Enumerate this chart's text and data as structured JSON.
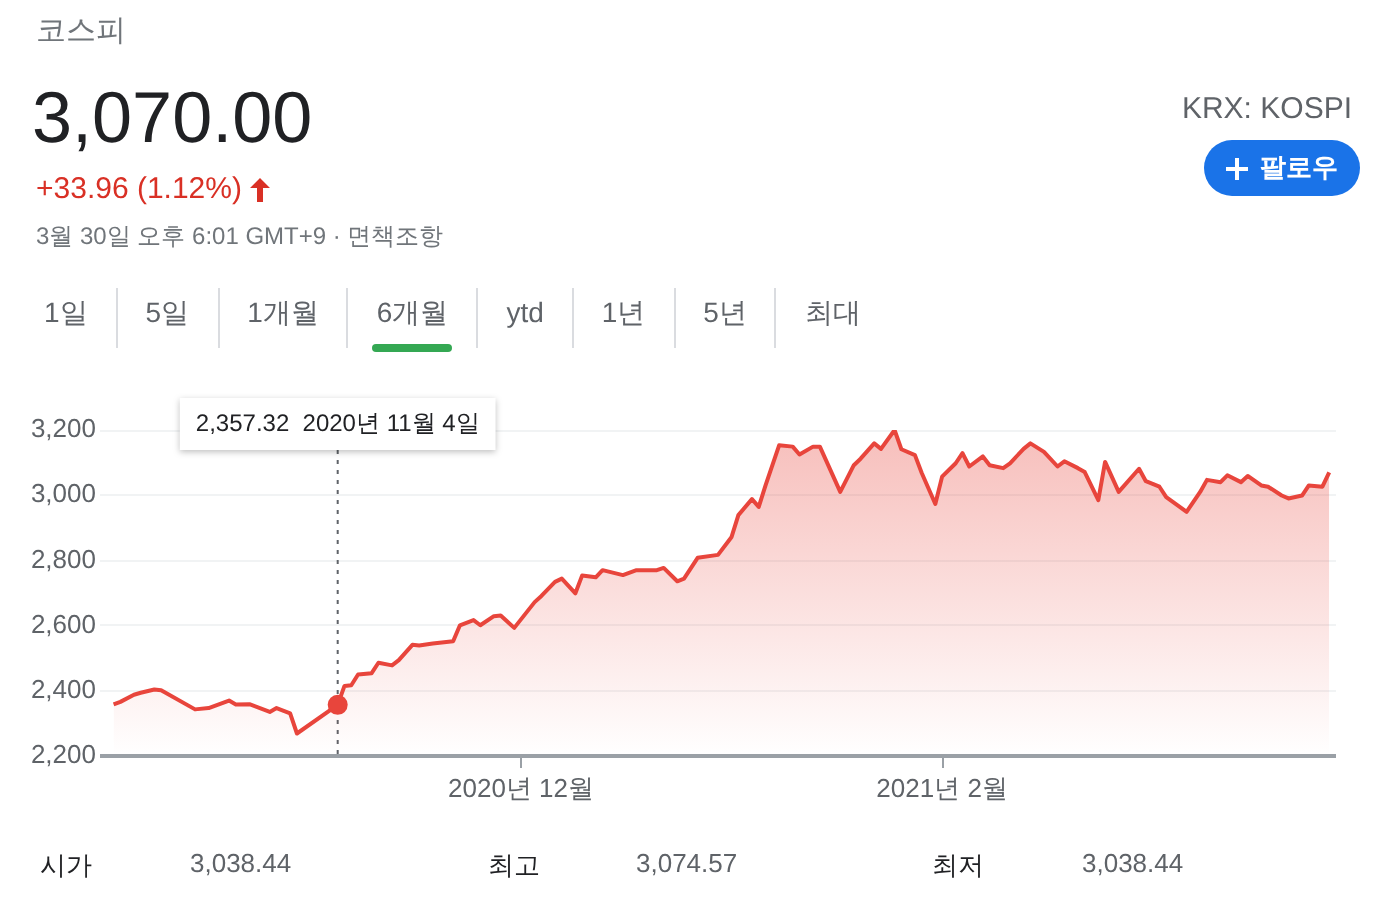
{
  "chart_data": {
    "type": "area",
    "title": "코스피",
    "subtitle": "3,070.00",
    "x": [
      "2020-10-02",
      "2020-10-03",
      "2020-10-05",
      "2020-10-06",
      "2020-10-08",
      "2020-10-09",
      "2020-10-14",
      "2020-10-16",
      "2020-10-19",
      "2020-10-20",
      "2020-10-22",
      "2020-10-25",
      "2020-10-26",
      "2020-10-28",
      "2020-10-29",
      "2020-11-04",
      "2020-11-05",
      "2020-11-06",
      "2020-11-07",
      "2020-11-09",
      "2020-11-10",
      "2020-11-12",
      "2020-11-13",
      "2020-11-15",
      "2020-11-16",
      "2020-11-18",
      "2020-11-21",
      "2020-11-22",
      "2020-11-24",
      "2020-11-25",
      "2020-11-27",
      "2020-11-28",
      "2020-11-30",
      "2020-12-03",
      "2020-12-04",
      "2020-12-06",
      "2020-12-07",
      "2020-12-09",
      "2020-12-10",
      "2020-12-12",
      "2020-12-13",
      "2020-12-16",
      "2020-12-18",
      "2020-12-21",
      "2020-12-22",
      "2020-12-24",
      "2020-12-25",
      "2020-12-27",
      "2020-12-30",
      "2021-01-01",
      "2021-01-02",
      "2021-01-04",
      "2021-01-05",
      "2021-01-06",
      "2021-01-08",
      "2021-01-10",
      "2021-01-11",
      "2021-01-13",
      "2021-01-14",
      "2021-01-17",
      "2021-01-19",
      "2021-01-20",
      "2021-01-22",
      "2021-01-23",
      "2021-01-25",
      "2021-01-26",
      "2021-01-28",
      "2021-01-29",
      "2021-01-31",
      "2021-02-01",
      "2021-02-03",
      "2021-02-04",
      "2021-02-05",
      "2021-02-07",
      "2021-02-08",
      "2021-02-10",
      "2021-02-11",
      "2021-02-13",
      "2021-02-14",
      "2021-02-16",
      "2021-02-18",
      "2021-02-19",
      "2021-02-21",
      "2021-02-22",
      "2021-02-24",
      "2021-02-25",
      "2021-02-27",
      "2021-03-02",
      "2021-03-03",
      "2021-03-05",
      "2021-03-06",
      "2021-03-09",
      "2021-03-11",
      "2021-03-12",
      "2021-03-14",
      "2021-03-15",
      "2021-03-17",
      "2021-03-18",
      "2021-03-20",
      "2021-03-21",
      "2021-03-23",
      "2021-03-24",
      "2021-03-26",
      "2021-03-27",
      "2021-03-29",
      "2021-03-30"
    ],
    "series": [
      {
        "color": "#e8453c",
        "values": [
          2358,
          2366,
          2388,
          2394,
          2404,
          2402,
          2343,
          2347,
          2370,
          2358,
          2359,
          2335,
          2347,
          2331,
          2269,
          2357,
          2415,
          2417,
          2450,
          2454,
          2486,
          2478,
          2494,
          2541,
          2539,
          2545,
          2552,
          2601,
          2617,
          2601,
          2629,
          2631,
          2593,
          2672,
          2691,
          2734,
          2744,
          2699,
          2754,
          2748,
          2770,
          2755,
          2770,
          2770,
          2777,
          2736,
          2744,
          2808,
          2817,
          2872,
          2939,
          2988,
          2964,
          3030,
          3153,
          3149,
          3125,
          3149,
          3149,
          3010,
          3092,
          3112,
          3159,
          3142,
          3200,
          3141,
          3123,
          3068,
          2973,
          3057,
          3098,
          3129,
          3088,
          3119,
          3092,
          3083,
          3098,
          3142,
          3159,
          3133,
          3088,
          3104,
          3083,
          3071,
          2985,
          3102,
          3010,
          3081,
          3043,
          3026,
          2994,
          2949,
          3010,
          3047,
          3040,
          3061,
          3040,
          3059,
          3030,
          3026,
          2999,
          2990,
          2999,
          3030,
          3026,
          3070
        ]
      },
      {
        "type": "scatter",
        "x": [
          "2020-11-04"
        ],
        "values": [
          2357
        ],
        "color": "#e8453c",
        "marker": "circle"
      }
    ],
    "xlim": [
      "2020-09-30",
      "2021-03-31"
    ],
    "xticks": [
      {
        "value": "2020-12-01",
        "label": "2020년 12월"
      },
      {
        "value": "2021-02-01",
        "label": "2021년 2월"
      }
    ],
    "ylim": [
      2200,
      3200
    ],
    "yticks": [
      {
        "value": 2200,
        "label": "2,200"
      },
      {
        "value": 2400,
        "label": "2,400"
      },
      {
        "value": 2600,
        "label": "2,600"
      },
      {
        "value": 2800,
        "label": "2,800"
      },
      {
        "value": 3000,
        "label": "3,000"
      },
      {
        "value": 3200,
        "label": "3,200"
      }
    ],
    "grid": "y",
    "legend": false,
    "marker": "none",
    "ref_lines": [
      {
        "axis": "x",
        "value": "2020-11-04",
        "color": "#5f6368",
        "line_style": "dotted"
      }
    ],
    "annotations": [
      "2,357.32  2020년 11월 4일",
      "+33.96 (1.12%)",
      "3월 30일 오후 6:01 GMT+9 · 면책조항",
      "KRX: KOSPI",
      "팔로우",
      "1일",
      "5일",
      "1개월",
      "6개월",
      "ytd",
      "1년",
      "5년",
      "최대",
      "시가",
      "3,038.44",
      "최고",
      "3,074.57",
      "최저",
      "3,038.44"
    ]
  }
}
